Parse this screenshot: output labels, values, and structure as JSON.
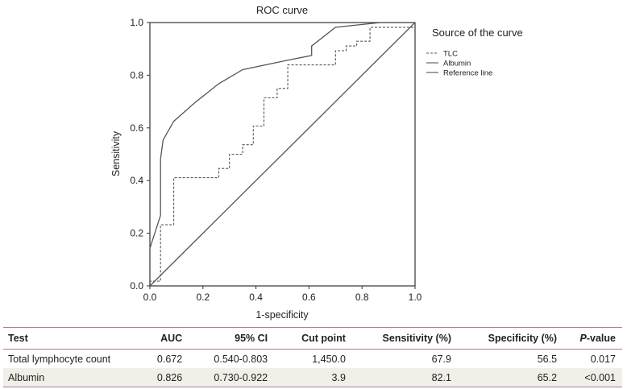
{
  "chart_data": {
    "type": "line",
    "title": "ROC curve",
    "xlabel": "1-specificity",
    "ylabel": "Sensitivity",
    "xlim": [
      0,
      1
    ],
    "ylim": [
      0,
      1
    ],
    "xticks": [
      "0.0",
      "0.2",
      "0.4",
      "0.6",
      "0.8",
      "1.0"
    ],
    "yticks": [
      "0.0",
      "0.2",
      "0.4",
      "0.6",
      "0.8",
      "1.0"
    ],
    "grid": false,
    "legend_title": "Source of the curve",
    "legend_position": "right",
    "series": [
      {
        "name": "TLC",
        "style": "dashed",
        "x": [
          0,
          0,
          0.04,
          0.04,
          0.09,
          0.09,
          0.26,
          0.26,
          0.3,
          0.3,
          0.35,
          0.35,
          0.39,
          0.39,
          0.43,
          0.43,
          0.48,
          0.48,
          0.52,
          0.52,
          0.7,
          0.7,
          0.74,
          0.74,
          0.78,
          0.78,
          0.83,
          0.83,
          1.0
        ],
        "y": [
          0,
          0.018,
          0.018,
          0.232,
          0.232,
          0.411,
          0.411,
          0.446,
          0.446,
          0.5,
          0.5,
          0.536,
          0.536,
          0.607,
          0.607,
          0.714,
          0.714,
          0.75,
          0.75,
          0.839,
          0.839,
          0.893,
          0.893,
          0.911,
          0.911,
          0.929,
          0.929,
          0.982,
          0.982
        ]
      },
      {
        "name": "Albumin",
        "style": "solid",
        "x": [
          0,
          0,
          0.04,
          0.04,
          0.05,
          0.09,
          0.17,
          0.26,
          0.35,
          0.52,
          0.61,
          0.61,
          0.7,
          0.7,
          0.87,
          1.0
        ],
        "y": [
          0,
          0.143,
          0.268,
          0.482,
          0.554,
          0.625,
          0.696,
          0.768,
          0.821,
          0.857,
          0.875,
          0.911,
          0.982,
          0.982,
          1.0,
          1.0
        ]
      },
      {
        "name": "Reference line",
        "style": "solid",
        "x": [
          0,
          1
        ],
        "y": [
          0,
          1
        ]
      }
    ]
  },
  "table": {
    "headers": [
      "Test",
      "AUC",
      "95% CI",
      "Cut point",
      "Sensitivity (%)",
      "Specificity (%)",
      "P-value"
    ],
    "rows": [
      [
        "Total lymphocyte count",
        "0.672",
        "0.540-0.803",
        "1,450.0",
        "67.9",
        "56.5",
        "0.017"
      ],
      [
        "Albumin",
        "0.826",
        "0.730-0.922",
        "3.9",
        "82.1",
        "65.2",
        "<0.001"
      ]
    ]
  },
  "colors": {
    "line": "#555555",
    "table_rule": "#a77ea0",
    "row_stripe": "#f2efe9"
  }
}
